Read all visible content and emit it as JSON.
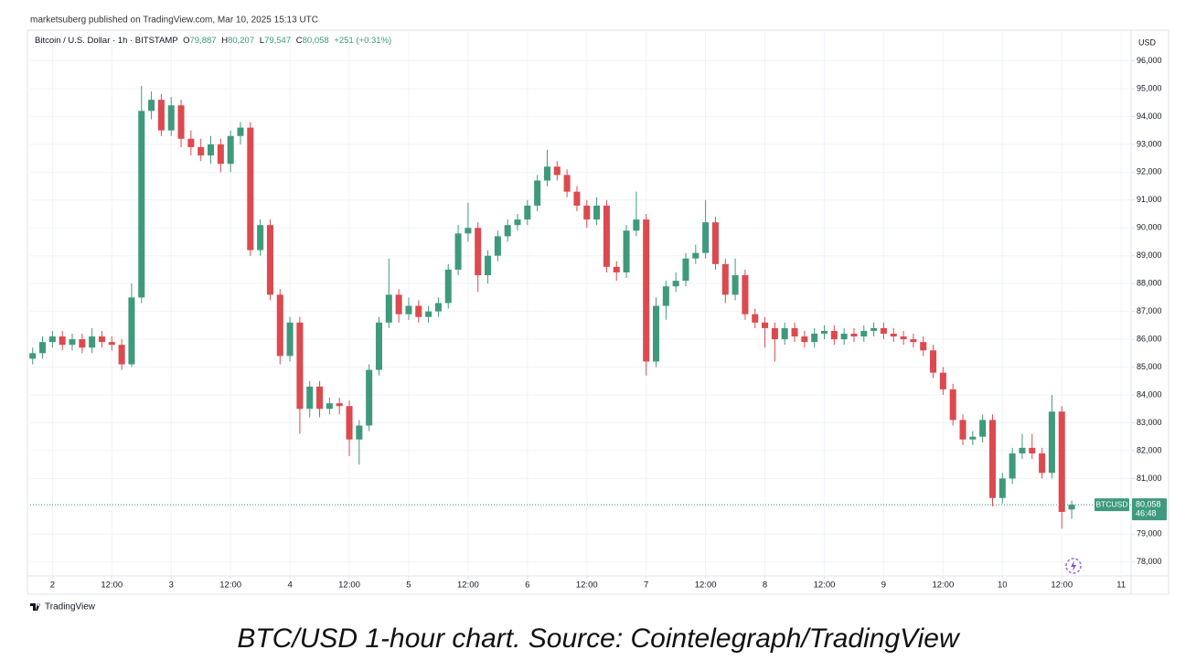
{
  "header": {
    "publisher": "marketsuberg published on TradingView.com, Mar 10, 2025 15:13 UTC"
  },
  "chart_data": {
    "type": "candlestick",
    "symbol": "Bitcoin / U.S. Dollar · 1h · BITSTAMP",
    "ohlc_legend": [
      {
        "label": "O",
        "value": "79,887"
      },
      {
        "label": "H",
        "value": "80,207"
      },
      {
        "label": "L",
        "value": "79,547"
      },
      {
        "label": "C",
        "value": "80,058"
      }
    ],
    "change": "+251 (+0.31%)",
    "currency": "USD",
    "up_color": "#3f9a7d",
    "down_color": "#dc4a4f",
    "grid": true,
    "xlim": [
      -4.5,
      218
    ],
    "ylim": [
      77500,
      97100
    ],
    "xticks": [
      {
        "value": 0,
        "label": "2"
      },
      {
        "value": 12,
        "label": "12:00"
      },
      {
        "value": 24,
        "label": "3"
      },
      {
        "value": 36,
        "label": "12:00"
      },
      {
        "value": 48,
        "label": "4"
      },
      {
        "value": 60,
        "label": "12:00"
      },
      {
        "value": 72,
        "label": "5"
      },
      {
        "value": 84,
        "label": "12:00"
      },
      {
        "value": 96,
        "label": "6"
      },
      {
        "value": 108,
        "label": "12:00"
      },
      {
        "value": 120,
        "label": "7"
      },
      {
        "value": 132,
        "label": "12:00"
      },
      {
        "value": 144,
        "label": "8"
      },
      {
        "value": 156,
        "label": "12:00"
      },
      {
        "value": 168,
        "label": "9"
      },
      {
        "value": 180,
        "label": "12:00"
      },
      {
        "value": 192,
        "label": "10"
      },
      {
        "value": 204,
        "label": "12:00"
      },
      {
        "value": 216,
        "label": "11"
      }
    ],
    "yticks": [
      {
        "value": 78000,
        "label": "78,000"
      },
      {
        "value": 79000,
        "label": "79,000"
      },
      {
        "value": 80000,
        "label": "80,000"
      },
      {
        "value": 81000,
        "label": "81,000"
      },
      {
        "value": 82000,
        "label": "82,000"
      },
      {
        "value": 83000,
        "label": "83,000"
      },
      {
        "value": 84000,
        "label": "84,000"
      },
      {
        "value": 85000,
        "label": "85,000"
      },
      {
        "value": 86000,
        "label": "86,000"
      },
      {
        "value": 87000,
        "label": "87,000"
      },
      {
        "value": 88000,
        "label": "88,000"
      },
      {
        "value": 89000,
        "label": "89,000"
      },
      {
        "value": 90000,
        "label": "90,000"
      },
      {
        "value": 91000,
        "label": "91,000"
      },
      {
        "value": 92000,
        "label": "92,000"
      },
      {
        "value": 93000,
        "label": "93,000"
      },
      {
        "value": 94000,
        "label": "94,000"
      },
      {
        "value": 95000,
        "label": "95,000"
      },
      {
        "value": 96000,
        "label": "96,000"
      }
    ],
    "x": [
      -4,
      -2,
      0,
      2,
      4,
      6,
      8,
      10,
      12,
      14,
      16,
      18,
      20,
      22,
      24,
      26,
      28,
      30,
      32,
      34,
      36,
      38,
      40,
      42,
      44,
      46,
      48,
      50,
      52,
      54,
      56,
      58,
      60,
      62,
      64,
      66,
      68,
      70,
      72,
      74,
      76,
      78,
      80,
      82,
      84,
      86,
      88,
      90,
      92,
      94,
      96,
      98,
      100,
      102,
      104,
      106,
      108,
      110,
      112,
      114,
      116,
      118,
      120,
      122,
      124,
      126,
      128,
      130,
      132,
      134,
      136,
      138,
      140,
      142,
      144,
      146,
      148,
      150,
      152,
      154,
      156,
      158,
      160,
      162,
      164,
      166,
      168,
      170,
      172,
      174,
      176,
      178,
      180,
      182,
      184,
      186,
      188,
      190,
      192,
      194,
      196,
      198,
      200,
      202,
      204,
      206
    ],
    "open": [
      85300,
      85500,
      85900,
      86100,
      85800,
      86000,
      85700,
      86100,
      85900,
      85800,
      85100,
      87500,
      94200,
      94600,
      93500,
      94400,
      93200,
      92900,
      92600,
      93000,
      92300,
      93300,
      93600,
      89200,
      90100,
      87600,
      85400,
      86600,
      83500,
      84300,
      83500,
      83700,
      83600,
      82400,
      82900,
      84900,
      86600,
      87600,
      86900,
      87200,
      86800,
      87000,
      87300,
      88500,
      89800,
      90000,
      88300,
      89000,
      89700,
      90100,
      90300,
      90800,
      91700,
      92200,
      91900,
      91300,
      90800,
      90300,
      90800,
      88600,
      88400,
      89900,
      90300,
      85200,
      87200,
      87900,
      88100,
      88900,
      89100,
      90200,
      88700,
      87600,
      88300,
      86900,
      86600,
      86400,
      86000,
      86400,
      86100,
      85900,
      86200,
      86300,
      86000,
      86200,
      86100,
      86300,
      86400,
      86200,
      86100,
      86000,
      85900,
      85600,
      84800,
      84200,
      83100,
      82400,
      82500,
      83100,
      80300,
      81000,
      81900,
      82100,
      81900,
      81200,
      83400,
      79887
    ],
    "high": [
      85700,
      86100,
      86300,
      86300,
      86200,
      86200,
      86400,
      86300,
      86100,
      86000,
      88000,
      95100,
      94900,
      94800,
      94700,
      94600,
      93500,
      93200,
      93300,
      93200,
      93500,
      93800,
      93800,
      90300,
      90300,
      87800,
      86800,
      86800,
      84500,
      84500,
      83900,
      83900,
      83800,
      83100,
      85100,
      86800,
      88900,
      87800,
      87500,
      87400,
      87200,
      87500,
      88700,
      90100,
      90900,
      90200,
      89200,
      89900,
      90300,
      90500,
      91000,
      91900,
      92800,
      92400,
      92100,
      91500,
      91000,
      91100,
      91000,
      88800,
      90100,
      91300,
      90500,
      87500,
      88100,
      88400,
      89100,
      89400,
      91000,
      90400,
      88900,
      88900,
      88500,
      87100,
      86800,
      86600,
      86600,
      86600,
      86300,
      86400,
      86500,
      86500,
      86400,
      86400,
      86500,
      86600,
      86600,
      86400,
      86300,
      86200,
      86100,
      85800,
      85000,
      84400,
      83300,
      82700,
      83300,
      83300,
      81200,
      82100,
      82600,
      82600,
      82100,
      84000,
      83600,
      80207
    ],
    "low": [
      85100,
      85300,
      85700,
      85600,
      85600,
      85500,
      85500,
      85700,
      85600,
      84900,
      85000,
      87300,
      93900,
      93300,
      93300,
      92900,
      92600,
      92400,
      92300,
      92000,
      92000,
      93000,
      89000,
      89000,
      87400,
      85100,
      85200,
      82600,
      83200,
      83200,
      83300,
      83300,
      81800,
      81500,
      82700,
      84700,
      86400,
      86600,
      86700,
      86600,
      86600,
      86800,
      87100,
      88300,
      89500,
      87700,
      88000,
      88800,
      89500,
      89900,
      90100,
      90600,
      91500,
      91700,
      91100,
      90600,
      90000,
      90100,
      88400,
      88100,
      88200,
      89700,
      84700,
      85000,
      86700,
      87700,
      87900,
      88700,
      88900,
      88500,
      87300,
      87400,
      86700,
      86400,
      85700,
      85200,
      85800,
      85900,
      85700,
      85700,
      86000,
      85800,
      85800,
      85900,
      85900,
      86100,
      86000,
      85900,
      85800,
      85700,
      85400,
      84600,
      84000,
      82900,
      82200,
      82200,
      82300,
      80000,
      80100,
      80800,
      81700,
      81700,
      81000,
      81000,
      79200,
      79547
    ],
    "close": [
      85500,
      85900,
      86100,
      85800,
      86000,
      85700,
      86100,
      85900,
      85800,
      85100,
      87500,
      94200,
      94600,
      93500,
      94400,
      93200,
      92900,
      92600,
      93000,
      92300,
      93300,
      93600,
      89200,
      90100,
      87600,
      85400,
      86600,
      83500,
      84300,
      83500,
      83700,
      83600,
      82400,
      82900,
      84900,
      86600,
      87600,
      86900,
      87200,
      86800,
      87000,
      87300,
      88500,
      89800,
      90000,
      88300,
      89000,
      89700,
      90100,
      90300,
      90800,
      91700,
      92200,
      91900,
      91300,
      90800,
      90300,
      90800,
      88600,
      88400,
      89900,
      90300,
      85200,
      87200,
      87900,
      88100,
      88900,
      89100,
      90200,
      88700,
      87600,
      88300,
      86900,
      86600,
      86400,
      86000,
      86400,
      86100,
      85900,
      86200,
      86300,
      86000,
      86200,
      86100,
      86300,
      86400,
      86200,
      86100,
      86000,
      85900,
      85600,
      84800,
      84200,
      83100,
      82400,
      82500,
      83100,
      80300,
      81000,
      81900,
      82100,
      81900,
      81200,
      83400,
      79800,
      80058
    ],
    "last_price": {
      "symbol": "BTCUSD",
      "value": 80058,
      "label": "80,058",
      "countdown": "46:48"
    }
  },
  "logo": "TradingView",
  "caption": "BTC/USD 1-hour chart. Source: Cointelegraph/TradingView"
}
